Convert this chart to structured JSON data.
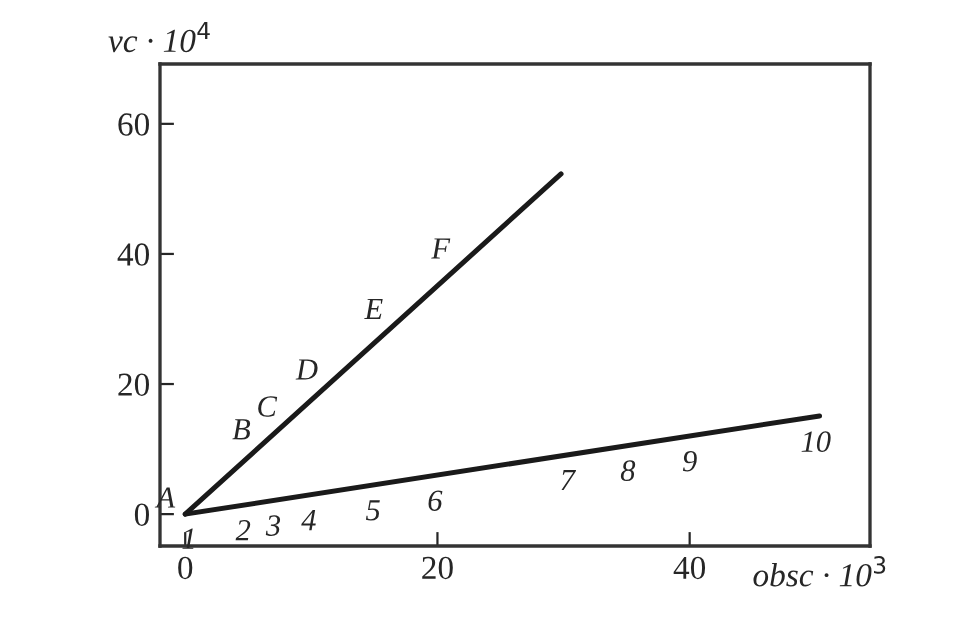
{
  "chart_data": {
    "type": "line",
    "xlabel": "obsc · 10$^{3}$",
    "ylabel": "vc · 10$^{4}$",
    "series": [
      {
        "color": "#1a1a1a",
        "x": [
          0,
          29.8
        ],
        "values": [
          0,
          52.3
        ]
      },
      {
        "color": "#1a1a1a",
        "x": [
          0,
          50.3
        ],
        "values": [
          0,
          15.1
        ]
      }
    ],
    "xlim": [
      -2,
      54.3
    ],
    "ylim": [
      -4.9,
      69.2
    ],
    "xticks": [
      0,
      20,
      40
    ],
    "yticks": [
      0,
      20,
      40,
      60
    ],
    "grid": false,
    "legend": false,
    "marker": "none",
    "line_style": "solid",
    "annotations": [
      {
        "text": "A",
        "x": 0,
        "y": 0
      },
      {
        "text": "B",
        "x": 6,
        "y": 10.5
      },
      {
        "text": "C",
        "x": 8,
        "y": 14
      },
      {
        "text": "D",
        "x": 11.2,
        "y": 19.7
      },
      {
        "text": "E",
        "x": 16.5,
        "y": 29
      },
      {
        "text": "F",
        "x": 21.8,
        "y": 38.3
      },
      {
        "text": "1",
        "x": 0.3,
        "y": 0.09
      },
      {
        "text": "2",
        "x": 4.6,
        "y": 1.38
      },
      {
        "text": "3",
        "x": 7,
        "y": 2.1
      },
      {
        "text": "4",
        "x": 9.8,
        "y": 2.94
      },
      {
        "text": "5",
        "x": 14.9,
        "y": 4.47
      },
      {
        "text": "6",
        "x": 19.8,
        "y": 5.94
      },
      {
        "text": "7",
        "x": 30.3,
        "y": 9.1
      },
      {
        "text": "8",
        "x": 35.1,
        "y": 10.54
      },
      {
        "text": "9",
        "x": 40,
        "y": 12
      },
      {
        "text": "10",
        "x": 50,
        "y": 15
      }
    ]
  }
}
